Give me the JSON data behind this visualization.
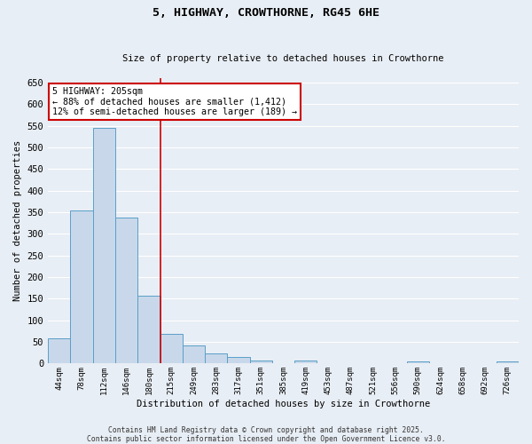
{
  "title": "5, HIGHWAY, CROWTHORNE, RG45 6HE",
  "subtitle": "Size of property relative to detached houses in Crowthorne",
  "xlabel": "Distribution of detached houses by size in Crowthorne",
  "ylabel": "Number of detached properties",
  "bar_labels": [
    "44sqm",
    "78sqm",
    "112sqm",
    "146sqm",
    "180sqm",
    "215sqm",
    "249sqm",
    "283sqm",
    "317sqm",
    "351sqm",
    "385sqm",
    "419sqm",
    "453sqm",
    "487sqm",
    "521sqm",
    "556sqm",
    "590sqm",
    "624sqm",
    "658sqm",
    "692sqm",
    "726sqm"
  ],
  "bar_values": [
    58,
    355,
    545,
    338,
    157,
    68,
    41,
    24,
    16,
    8,
    0,
    8,
    0,
    0,
    0,
    0,
    5,
    0,
    0,
    0,
    5
  ],
  "bar_color": "#c8d8ea",
  "bar_edge_color": "#5a9fc8",
  "vline_color": "#cc0000",
  "annotation_text": "5 HIGHWAY: 205sqm\n← 88% of detached houses are smaller (1,412)\n12% of semi-detached houses are larger (189) →",
  "annotation_box_color": "#ffffff",
  "annotation_box_edge": "#cc0000",
  "ylim": [
    0,
    660
  ],
  "yticks": [
    0,
    50,
    100,
    150,
    200,
    250,
    300,
    350,
    400,
    450,
    500,
    550,
    600,
    650
  ],
  "background_color": "#e8eef5",
  "grid_color": "#ffffff",
  "footer1": "Contains HM Land Registry data © Crown copyright and database right 2025.",
  "footer2": "Contains public sector information licensed under the Open Government Licence v3.0."
}
